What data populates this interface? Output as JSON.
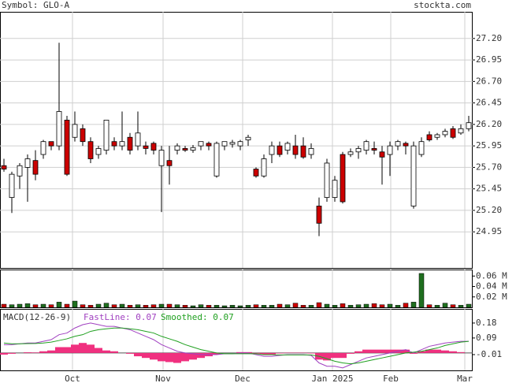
{
  "header": {
    "symbol": "Symbol: GLO-A",
    "site": "stockta.com"
  },
  "chart_data": [
    {
      "type": "candlestick",
      "xlim": [
        -0.5,
        59.5
      ],
      "xticks": [
        {
          "value": 8.7,
          "label": "Oct"
        },
        {
          "value": 20.2,
          "label": "Nov"
        },
        {
          "value": 30.3,
          "label": "Dec"
        },
        {
          "value": 41.7,
          "label": "Jan 2025"
        },
        {
          "value": 49.1,
          "label": "Feb"
        },
        {
          "value": 58.5,
          "label": "Mar"
        }
      ],
      "ylim": [
        24.53,
        27.51
      ],
      "yticks": [
        {
          "value": 27.2,
          "label": "27.20"
        },
        26.95,
        {
          "value": 26.7,
          "label": "26.70"
        },
        26.45,
        {
          "value": 26.2,
          "label": "26.20"
        },
        25.95,
        {
          "value": 25.7,
          "label": "25.70"
        },
        25.45,
        {
          "value": 25.2,
          "label": "25.20"
        },
        24.95
      ],
      "grid": true,
      "up_color": "#ffffff",
      "down_color": "#cc0000",
      "open": [
        25.72,
        25.35,
        25.6,
        25.7,
        25.78,
        25.85,
        26.0,
        25.95,
        26.25,
        26.05,
        26.15,
        26.0,
        25.85,
        25.9,
        26.0,
        25.95,
        26.05,
        25.95,
        25.95,
        25.98,
        25.72,
        25.78,
        25.9,
        25.92,
        25.9,
        25.95,
        25.98,
        25.6,
        25.95,
        25.97,
        25.95,
        26.02,
        25.68,
        25.6,
        25.85,
        25.95,
        25.9,
        25.95,
        25.95,
        25.85,
        25.25,
        25.35,
        25.35,
        25.85,
        25.85,
        25.88,
        25.9,
        25.92,
        25.88,
        25.85,
        25.95,
        25.98,
        25.25,
        25.85,
        26.08,
        26.05,
        26.08,
        26.15,
        26.1,
        26.15
      ],
      "high": [
        25.8,
        25.65,
        25.75,
        25.85,
        25.9,
        26.02,
        26.0,
        27.15,
        26.3,
        26.35,
        26.2,
        26.05,
        25.95,
        26.25,
        26.05,
        26.35,
        26.1,
        26.35,
        26.0,
        26.0,
        25.95,
        25.95,
        25.98,
        25.95,
        25.96,
        26.0,
        26.0,
        26.0,
        26.0,
        26.02,
        26.02,
        26.08,
        25.7,
        25.85,
        26.0,
        26.0,
        26.0,
        26.08,
        26.05,
        25.98,
        25.35,
        25.8,
        25.6,
        25.88,
        25.92,
        25.95,
        26.02,
        26.0,
        25.95,
        26.0,
        26.02,
        26.0,
        26.0,
        26.05,
        26.12,
        26.1,
        26.15,
        26.18,
        26.2,
        26.3
      ],
      "low": [
        25.65,
        25.17,
        25.45,
        25.3,
        25.55,
        25.8,
        25.9,
        25.9,
        25.6,
        26.0,
        25.95,
        25.75,
        25.8,
        25.85,
        25.9,
        25.9,
        25.85,
        25.9,
        25.85,
        25.85,
        25.18,
        25.5,
        25.85,
        25.88,
        25.87,
        25.9,
        25.9,
        25.58,
        25.9,
        25.93,
        25.9,
        25.95,
        25.58,
        25.58,
        25.75,
        25.82,
        25.85,
        25.8,
        25.8,
        25.8,
        24.9,
        25.3,
        25.3,
        25.28,
        25.82,
        25.8,
        25.85,
        25.85,
        25.5,
        25.6,
        25.9,
        25.85,
        25.22,
        25.82,
        26.0,
        26.02,
        26.05,
        26.03,
        26.08,
        26.12
      ],
      "close": [
        25.68,
        25.62,
        25.72,
        25.8,
        25.62,
        26.0,
        25.95,
        26.35,
        25.62,
        26.2,
        26.0,
        25.8,
        25.92,
        26.25,
        25.95,
        26.0,
        25.9,
        26.1,
        25.92,
        25.9,
        25.9,
        25.72,
        25.95,
        25.9,
        25.93,
        26.0,
        25.95,
        25.98,
        26.0,
        25.99,
        26.0,
        26.05,
        25.6,
        25.8,
        25.95,
        25.85,
        25.98,
        25.85,
        25.82,
        25.92,
        25.05,
        25.75,
        25.55,
        25.3,
        25.88,
        25.92,
        26.0,
        25.9,
        25.82,
        25.95,
        26.0,
        25.95,
        25.95,
        26.0,
        26.02,
        26.08,
        26.12,
        26.05,
        26.15,
        26.22
      ]
    },
    {
      "type": "volume",
      "ylim": [
        0,
        0.0725
      ],
      "yticks": [
        {
          "value": 0.06,
          "label": "0.06 M"
        },
        {
          "value": 0.04,
          "label": "0.04 M"
        },
        {
          "value": 0.02,
          "label": "0.02 M"
        }
      ],
      "up_color": "#1f6f1f",
      "down_color": "#cc0000",
      "values": [
        0.006,
        0.005,
        0.006,
        0.007,
        0.005,
        0.006,
        0.005,
        0.01,
        0.006,
        0.012,
        0.005,
        0.004,
        0.006,
        0.008,
        0.005,
        0.006,
        0.004,
        0.005,
        0.004,
        0.005,
        0.006,
        0.006,
        0.005,
        0.004,
        0.003,
        0.005,
        0.004,
        0.004,
        0.003,
        0.004,
        0.003,
        0.004,
        0.005,
        0.004,
        0.004,
        0.006,
        0.005,
        0.008,
        0.004,
        0.004,
        0.009,
        0.006,
        0.004,
        0.007,
        0.004,
        0.005,
        0.006,
        0.007,
        0.005,
        0.006,
        0.004,
        0.008,
        0.01,
        0.065,
        0.005,
        0.004,
        0.008,
        0.005,
        0.004,
        0.006
      ]
    },
    {
      "type": "macd",
      "title": "MACD(12-26-9)",
      "ylim": [
        -0.105,
        0.265
      ],
      "yticks": [
        0.18,
        0.09,
        -0.01
      ],
      "series": [
        {
          "name": "FastLine: 0.07",
          "color": "#a040c0",
          "values": [
            0.05,
            0.05,
            0.055,
            0.06,
            0.06,
            0.07,
            0.08,
            0.11,
            0.12,
            0.15,
            0.17,
            0.18,
            0.17,
            0.16,
            0.16,
            0.15,
            0.14,
            0.12,
            0.1,
            0.08,
            0.05,
            0.03,
            0.01,
            0.0,
            -0.005,
            -0.01,
            -0.01,
            -0.01,
            -0.005,
            -0.005,
            0.0,
            0.0,
            -0.01,
            -0.02,
            -0.02,
            -0.015,
            -0.01,
            -0.01,
            -0.01,
            -0.015,
            -0.06,
            -0.08,
            -0.08,
            -0.09,
            -0.07,
            -0.05,
            -0.03,
            -0.02,
            -0.01,
            0.0,
            0.01,
            0.02,
            0.0,
            0.02,
            0.04,
            0.05,
            0.06,
            0.065,
            0.07,
            0.07
          ]
        },
        {
          "name": "Smoothed: 0.07",
          "color": "#20a020",
          "values": [
            0.06,
            0.055,
            0.055,
            0.056,
            0.057,
            0.06,
            0.065,
            0.075,
            0.085,
            0.1,
            0.11,
            0.13,
            0.14,
            0.145,
            0.15,
            0.15,
            0.145,
            0.14,
            0.13,
            0.12,
            0.1,
            0.085,
            0.07,
            0.05,
            0.035,
            0.02,
            0.01,
            0.0,
            -0.005,
            -0.005,
            -0.005,
            -0.005,
            -0.005,
            -0.01,
            -0.01,
            -0.012,
            -0.012,
            -0.012,
            -0.012,
            -0.012,
            -0.02,
            -0.035,
            -0.05,
            -0.06,
            -0.065,
            -0.06,
            -0.05,
            -0.04,
            -0.03,
            -0.02,
            -0.01,
            0.0,
            0.005,
            0.01,
            0.02,
            0.03,
            0.045,
            0.055,
            0.065,
            0.07
          ]
        }
      ],
      "histogram_color": "#f0307f",
      "histogram": [
        -0.01,
        -0.005,
        0,
        0.004,
        0.003,
        0.01,
        0.015,
        0.035,
        0.035,
        0.05,
        0.06,
        0.05,
        0.03,
        0.015,
        0.01,
        0,
        -0.005,
        -0.02,
        -0.03,
        -0.04,
        -0.05,
        -0.055,
        -0.06,
        -0.05,
        -0.04,
        -0.03,
        -0.02,
        -0.01,
        0,
        0,
        0.005,
        0.005,
        -0.005,
        -0.01,
        -0.01,
        -0.003,
        0.002,
        0.002,
        0.002,
        -0.003,
        -0.04,
        -0.045,
        -0.03,
        -0.03,
        -0.005,
        0.01,
        0.02,
        0.02,
        0.02,
        0.02,
        0.02,
        0.02,
        -0.005,
        0.01,
        0.02,
        0.02,
        0.015,
        0.01,
        0.005,
        0
      ]
    }
  ]
}
